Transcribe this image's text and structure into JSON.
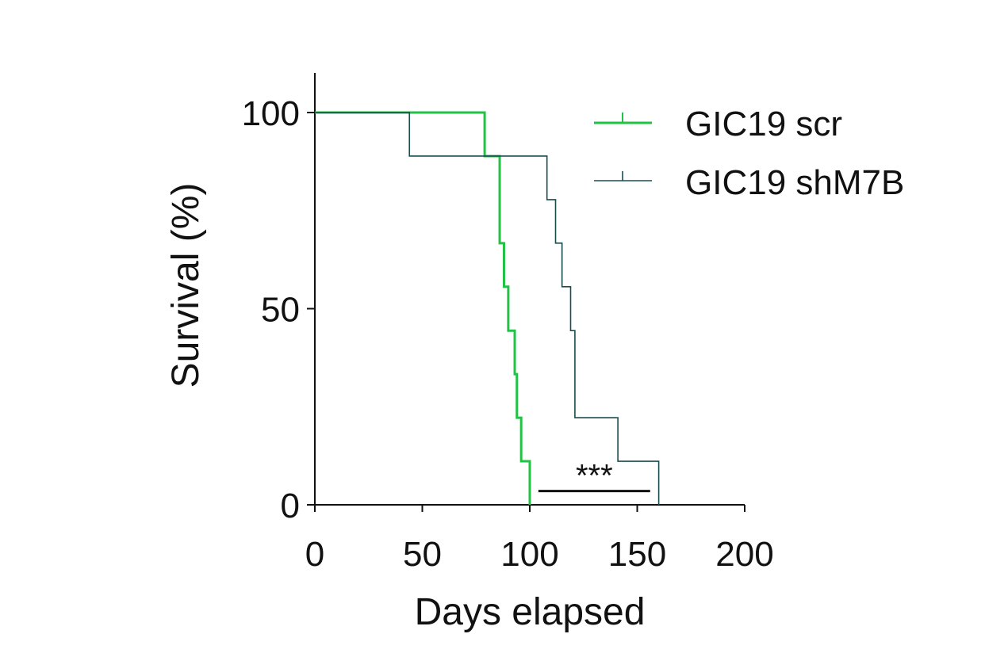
{
  "chart_data": {
    "type": "line",
    "subtype": "kaplan-meier",
    "title": "",
    "xlabel": "Days elapsed",
    "ylabel": "Survival (%)",
    "xlim": [
      0,
      200
    ],
    "ylim": [
      0,
      100
    ],
    "x_ticks": [
      0,
      50,
      100,
      150,
      200
    ],
    "y_ticks": [
      0,
      50,
      100
    ],
    "grid": false,
    "legend_position": "top-right",
    "series": [
      {
        "name": "GIC19 scr",
        "color": "#22c244",
        "step": true,
        "x": [
          0,
          79,
          86,
          86,
          88,
          90,
          93,
          94,
          96,
          100
        ],
        "y": [
          100,
          88.9,
          77.8,
          66.7,
          55.6,
          44.4,
          33.3,
          22.2,
          11.1,
          0
        ]
      },
      {
        "name": "GIC19 shM7B",
        "color": "#1a4d4d",
        "step": true,
        "x": [
          0,
          44,
          108,
          112,
          115,
          119,
          121,
          141,
          160
        ],
        "y": [
          100,
          88.9,
          77.8,
          66.7,
          55.6,
          44.4,
          22.2,
          11.1,
          0
        ]
      }
    ],
    "annotations": [
      {
        "text": "***",
        "x": 130,
        "y": 10
      }
    ],
    "significance_bar": {
      "x_start": 104,
      "x_end": 156,
      "y": 3.5
    }
  }
}
